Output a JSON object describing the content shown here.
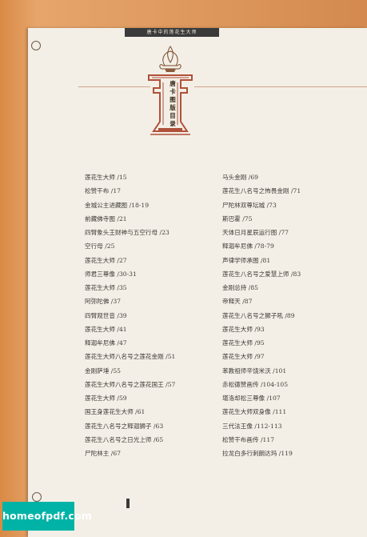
{
  "header": {
    "running_title": "唐卡中的莲花生大师"
  },
  "title": {
    "chars": [
      "唐",
      "卡",
      "图",
      "版",
      "目",
      "录"
    ]
  },
  "toc": {
    "left": [
      "莲花生大师 /15",
      "松赞干布 /17",
      "金城公主进藏图 /18-19",
      "前藏佛寺图 /21",
      "四臂象头王财神与五空行母 /23",
      "空行母 /25",
      "莲花生大师 /27",
      "师君三尊像 /30-31",
      "莲花生大师 /35",
      "阿弥陀佛 /37",
      "四臂观世音 /39",
      "莲花生大师 /41",
      "释迦牟尼佛 /47",
      "莲花生大师八名号之莲花金刚 /51",
      "金刚萨埵 /55",
      "莲花生大师八名号之莲花国王 /57",
      "莲花生大师 /59",
      "国王身莲花生大师 /61",
      "莲花生八名号之释迦狮子 /63",
      "莲花生八名号之日光上师 /65",
      "尸陀林主 /67"
    ],
    "right": [
      "马头金刚 /69",
      "莲花生八名号之怖畏金刚 /71",
      "尸陀林双尊坛城 /73",
      "斯巴霍 /75",
      "天体日月星辰运行图 /77",
      "释迦牟尼佛 /78-79",
      "声律学师承图 /81",
      "莲花生八名号之爱慧上师 /83",
      "金刚总持 /85",
      "帝释天 /87",
      "莲花生八名号之狮子吼 /89",
      "莲花生大师 /93",
      "莲花生大师 /95",
      "莲花生大师 /97",
      "苯教祖师辛饶米沃 /101",
      "赤松德赞画传 /104-105",
      "堪洛却松三尊像 /107",
      "莲花生大师双身像 /111",
      "三代法王像 /112-113",
      "松赞干布画传 /117",
      "拉龙白多行刺朗达玛 /119"
    ]
  },
  "watermark": {
    "text": "homeofpdf.com"
  },
  "colors": {
    "border": "#d98a45",
    "page": "#f3efe6",
    "header_bar": "#3a3a3a",
    "emblem_red": "#b0503a",
    "watermark_bg": "#00b3a6"
  },
  "icons": {
    "emblem": "lotus-tower-emblem",
    "corner": "corner-ornament-icon"
  }
}
